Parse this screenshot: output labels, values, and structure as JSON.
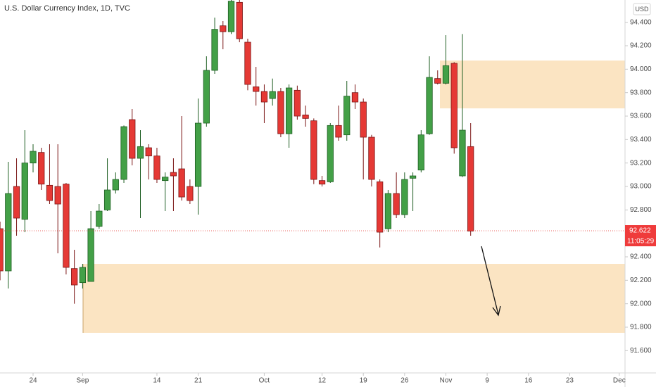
{
  "chart_data": {
    "type": "candlestick",
    "title": "U.S. Dollar Currency Index, 1D, TVC",
    "currency": "USD",
    "categories": [
      null,
      null,
      null,
      null,
      "24",
      null,
      null,
      null,
      null,
      null,
      "Sep",
      null,
      null,
      null,
      null,
      null,
      null,
      null,
      null,
      "14",
      null,
      null,
      null,
      null,
      "21",
      null,
      null,
      null,
      null,
      null,
      null,
      null,
      "Oct",
      null,
      null,
      null,
      null,
      null,
      null,
      "12",
      null,
      null,
      null,
      null,
      "19",
      null,
      null,
      null,
      null,
      "26",
      null,
      null,
      null,
      null,
      "Nov",
      null,
      null,
      null,
      null,
      "9",
      null,
      null,
      null,
      null,
      "16",
      null,
      null,
      null,
      null,
      "23",
      null,
      null,
      null,
      null,
      null,
      "Dec"
    ],
    "open": [
      92.64,
      92.28,
      93.0,
      92.72,
      93.2,
      93.29,
      93.01,
      93.0,
      93.02,
      92.3,
      92.18,
      92.19,
      92.66,
      92.8,
      92.97,
      93.06,
      93.57,
      93.24,
      93.33,
      93.26,
      93.05,
      93.12,
      93.15,
      93.0,
      93.0,
      93.54,
      93.99,
      94.37,
      94.32,
      94.57,
      94.23,
      93.85,
      93.81,
      93.75,
      93.81,
      93.45,
      93.82,
      93.61,
      93.56,
      93.05,
      93.04,
      93.52,
      93.44,
      93.8,
      93.72,
      93.42,
      93.04,
      92.64,
      92.94,
      92.76,
      93.07,
      93.14,
      93.45,
      93.92,
      93.88,
      94.05,
      93.09,
      93.34,
      null,
      null,
      null,
      null,
      null,
      null,
      null,
      null,
      null,
      null,
      null,
      null,
      null,
      null,
      null,
      null,
      null,
      null
    ],
    "high": [
      92.7,
      93.21,
      93.24,
      93.48,
      93.36,
      93.33,
      93.36,
      93.36,
      93.03,
      92.46,
      92.34,
      92.79,
      92.85,
      93.24,
      93.12,
      93.52,
      93.66,
      93.48,
      93.36,
      93.33,
      93.12,
      93.24,
      93.6,
      93.06,
      93.75,
      94.11,
      94.44,
      94.41,
      94.65,
      94.62,
      94.26,
      94.02,
      93.87,
      93.92,
      93.84,
      93.87,
      93.86,
      93.69,
      93.58,
      93.09,
      93.54,
      93.69,
      93.9,
      93.87,
      93.75,
      93.44,
      93.06,
      92.97,
      93.12,
      93.12,
      93.12,
      93.48,
      94.11,
      93.99,
      94.29,
      94.06,
      94.3,
      93.54,
      null,
      null,
      null,
      null,
      null,
      null,
      null,
      null,
      null,
      null,
      null,
      null,
      null,
      null,
      null,
      null,
      null,
      null
    ],
    "low": [
      92.2,
      92.13,
      92.58,
      92.61,
      93.12,
      92.97,
      92.85,
      92.43,
      92.25,
      92.0,
      92.13,
      92.19,
      92.64,
      92.79,
      92.94,
      93.03,
      93.18,
      92.73,
      93.06,
      93.03,
      92.79,
      92.79,
      92.88,
      92.85,
      92.76,
      93.51,
      93.96,
      94.17,
      94.3,
      94.23,
      93.82,
      93.69,
      93.54,
      93.69,
      93.42,
      93.33,
      93.57,
      93.51,
      93.02,
      93.0,
      93.03,
      93.39,
      93.39,
      93.66,
      93.06,
      93.0,
      92.48,
      92.61,
      92.73,
      92.73,
      92.79,
      93.12,
      93.44,
      93.87,
      93.87,
      93.28,
      93.08,
      92.58,
      null,
      null,
      null,
      null,
      null,
      null,
      null,
      null,
      null,
      null,
      null,
      null,
      null,
      null,
      null,
      null,
      null,
      null
    ],
    "close": [
      92.28,
      92.94,
      92.73,
      93.2,
      93.3,
      93.02,
      92.88,
      92.85,
      92.31,
      92.16,
      92.31,
      92.64,
      92.79,
      92.97,
      93.06,
      93.51,
      93.24,
      93.34,
      93.26,
      93.06,
      93.08,
      93.09,
      92.91,
      92.88,
      93.54,
      93.99,
      94.34,
      94.32,
      94.58,
      94.26,
      93.87,
      93.81,
      93.72,
      93.81,
      93.45,
      93.84,
      93.6,
      93.58,
      93.06,
      93.02,
      93.52,
      93.42,
      93.77,
      93.72,
      93.42,
      93.06,
      92.61,
      92.94,
      92.76,
      93.06,
      93.09,
      93.44,
      93.93,
      93.88,
      94.03,
      93.33,
      93.48,
      92.62,
      null,
      null,
      null,
      null,
      null,
      null,
      null,
      null,
      null,
      null,
      null,
      null,
      null,
      null,
      null,
      null,
      null,
      null
    ],
    "up_color": "#43a047",
    "down_color": "#e53935",
    "ylim": [
      91.41,
      94.59
    ],
    "yticks": [
      {
        "value": 91.6,
        "label": "91.600"
      },
      {
        "value": 91.8,
        "label": "91.800"
      },
      {
        "value": 92.0,
        "label": "92.000"
      },
      {
        "value": 92.2,
        "label": "92.200"
      },
      {
        "value": 92.4,
        "label": "92.400"
      },
      {
        "value": 92.6,
        "label": "92.600"
      },
      {
        "value": 92.8,
        "label": "92.800"
      },
      {
        "value": 93.0,
        "label": "93.000"
      },
      {
        "value": 93.2,
        "label": "93.200"
      },
      {
        "value": 93.4,
        "label": "93.400"
      },
      {
        "value": 93.6,
        "label": "93.600"
      },
      {
        "value": 93.8,
        "label": "93.800"
      },
      {
        "value": 94.0,
        "label": "94.000"
      },
      {
        "value": 94.2,
        "label": "94.200"
      },
      {
        "value": 94.4,
        "label": "94.400"
      }
    ],
    "last_price": 92.622,
    "countdown": "11:05:29"
  }
}
